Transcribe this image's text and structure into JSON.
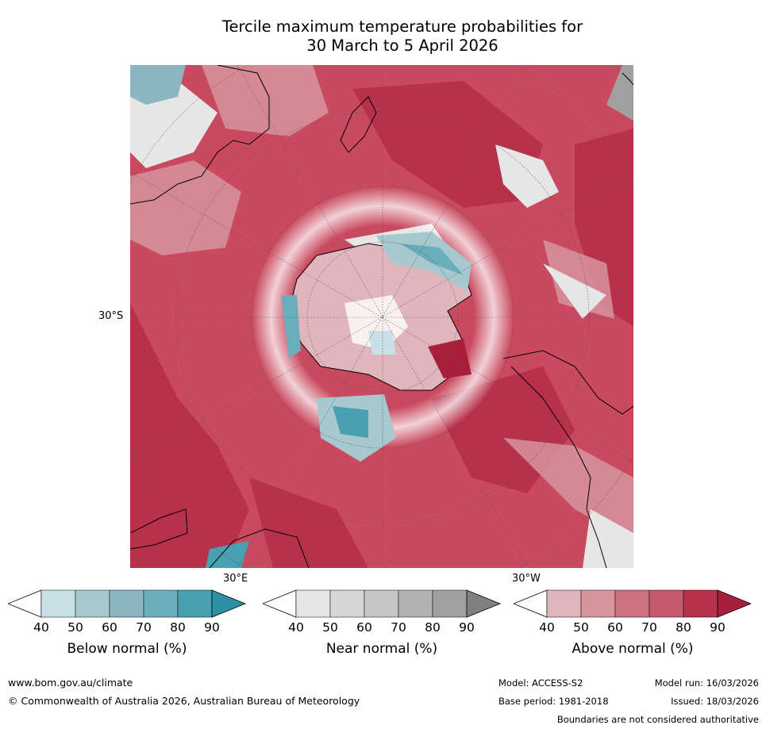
{
  "title_line1": "Tercile maximum temperature probabilities for",
  "title_line2": "30 March to 5 April 2026",
  "map": {
    "labels": {
      "lat": "30°S",
      "lon_east": "30°E",
      "lon_west": "30°W"
    },
    "colors": {
      "land_bg": "#c9495e",
      "above": [
        "#e0b5bb",
        "#d6949d",
        "#ca7280",
        "#c45a6b",
        "#b8314a",
        "#a81f3c"
      ],
      "below": [
        "#c8e0e6",
        "#a7c8cf",
        "#8cb6c1",
        "#6aaebb",
        "#48a0b0",
        "#2f8fa2"
      ],
      "near": [
        "#e6e6e6",
        "#d6d6d6",
        "#c6c6c6",
        "#b3b3b3",
        "#a0a0a0",
        "#808080"
      ]
    }
  },
  "colorbars": [
    {
      "label": "Below normal (%)",
      "ticks": [
        "40",
        "50",
        "60",
        "70",
        "80",
        "90"
      ],
      "colors": [
        "#c8e0e6",
        "#a7c8cf",
        "#8cb6c1",
        "#6aaebb",
        "#48a0b0",
        "#2f8fa2"
      ]
    },
    {
      "label": "Near normal (%)",
      "ticks": [
        "40",
        "50",
        "60",
        "70",
        "80",
        "90"
      ],
      "colors": [
        "#e6e6e6",
        "#d6d6d6",
        "#c6c6c6",
        "#b3b3b3",
        "#a0a0a0",
        "#808080"
      ]
    },
    {
      "label": "Above normal (%)",
      "ticks": [
        "40",
        "50",
        "60",
        "70",
        "80",
        "90"
      ],
      "colors": [
        "#e0b5bb",
        "#d6949d",
        "#ca7280",
        "#c45a6b",
        "#b8314a",
        "#a81f3c"
      ]
    }
  ],
  "footer": {
    "url": "www.bom.gov.au/climate",
    "copyright": "© Commonwealth of Australia 2026, Australian Bureau of Meteorology",
    "model": "Model: ACCESS-S2",
    "model_run": "Model run: 16/03/2026",
    "base_period": "Base period: 1981-2018",
    "issued": "Issued: 18/03/2026",
    "disclaimer": "Boundaries are not considered authoritative"
  }
}
